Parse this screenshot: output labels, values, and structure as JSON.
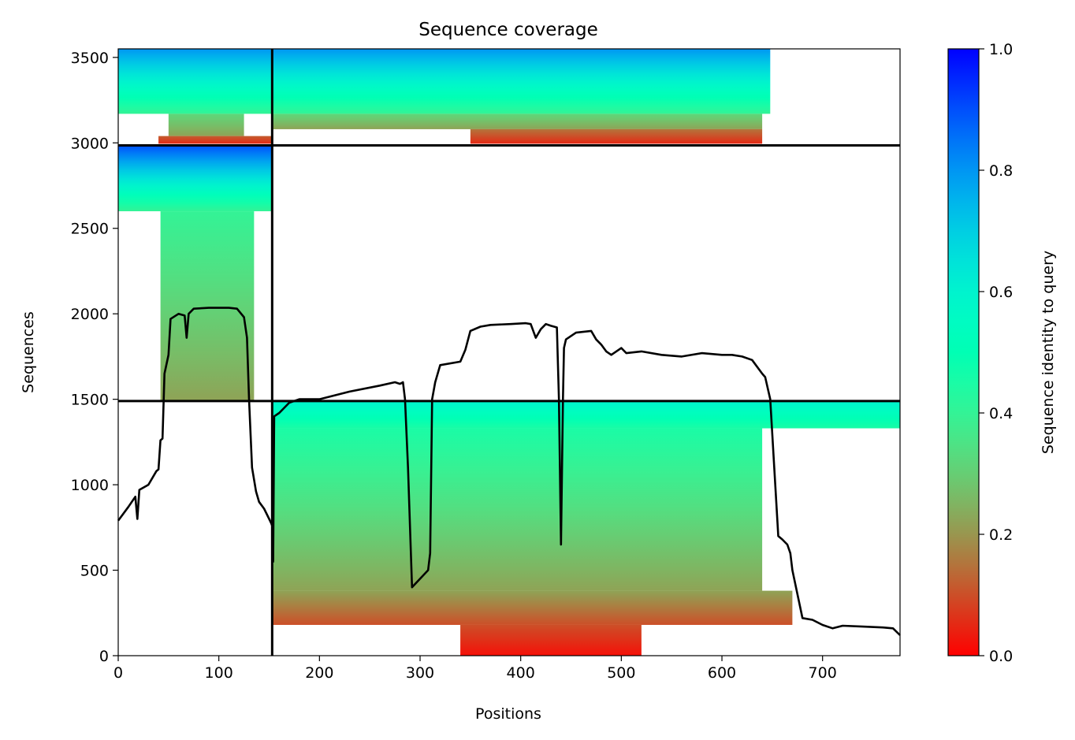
{
  "chart_data": {
    "type": "heatmap",
    "title": "Sequence coverage",
    "xlabel": "Positions",
    "ylabel": "Sequences",
    "xlim": [
      0,
      777
    ],
    "ylim": [
      0,
      3550
    ],
    "x_ticks": [
      0,
      100,
      200,
      300,
      400,
      500,
      600,
      700
    ],
    "y_ticks": [
      0,
      500,
      1000,
      1500,
      2000,
      2500,
      3000,
      3500
    ],
    "colorbar": {
      "label": "Sequence identity to query",
      "range": [
        0,
        1
      ],
      "ticks": [
        "0.0",
        "0.2",
        "0.4",
        "0.6",
        "0.8",
        "1.0"
      ],
      "colormap": "rainbow_r"
    },
    "separators": {
      "x": [
        153
      ],
      "y": [
        1490,
        2985
      ]
    },
    "blocks": [
      {
        "name": "upper-left",
        "x": [
          0,
          153
        ],
        "y": [
          2985,
          3550
        ],
        "regions": [
          {
            "x": [
              0,
              153
            ],
            "y": [
              3170,
              3550
            ],
            "identity_bottom": 0.4,
            "identity_top": 0.8
          },
          {
            "x": [
              50,
              125
            ],
            "y": [
              3040,
              3170
            ],
            "identity_bottom": 0.22,
            "identity_top": 0.32
          },
          {
            "x": [
              40,
              153
            ],
            "y": [
              2995,
              3040
            ],
            "identity_bottom": 0.05,
            "identity_top": 0.12
          }
        ]
      },
      {
        "name": "middle-left",
        "x": [
          0,
          153
        ],
        "y": [
          1490,
          2985
        ],
        "regions": [
          {
            "x": [
              0,
              153
            ],
            "y": [
              2600,
              2985
            ],
            "identity_bottom": 0.4,
            "identity_top": 0.9
          },
          {
            "x": [
              42,
              135
            ],
            "y": [
              1490,
              2600
            ],
            "identity_bottom": 0.22,
            "identity_top": 0.4
          }
        ]
      },
      {
        "name": "upper-right",
        "x": [
          153,
          777
        ],
        "y": [
          2985,
          3550
        ],
        "regions": [
          {
            "x": [
              153,
              648
            ],
            "y": [
              3170,
              3550
            ],
            "identity_bottom": 0.4,
            "identity_top": 0.8
          },
          {
            "x": [
              153,
              640
            ],
            "y": [
              3080,
              3170
            ],
            "identity_bottom": 0.22,
            "identity_top": 0.32
          },
          {
            "x": [
              350,
              640
            ],
            "y": [
              2995,
              3080
            ],
            "identity_bottom": 0.05,
            "identity_top": 0.15
          }
        ]
      },
      {
        "name": "lower-right",
        "x": [
          153,
          777
        ],
        "y": [
          0,
          1490
        ],
        "regions": [
          {
            "x": [
              153,
              777
            ],
            "y": [
              1330,
              1490
            ],
            "identity_bottom": 0.45,
            "identity_top": 0.6
          },
          {
            "x": [
              153,
              640
            ],
            "y": [
              380,
              1330
            ],
            "identity_bottom": 0.22,
            "identity_top": 0.45
          },
          {
            "x": [
              153,
              670
            ],
            "y": [
              180,
              380
            ],
            "identity_bottom": 0.1,
            "identity_top": 0.22
          },
          {
            "x": [
              340,
              520
            ],
            "y": [
              0,
              180
            ],
            "identity_bottom": 0.02,
            "identity_top": 0.1
          }
        ]
      }
    ],
    "coverage_line": {
      "x": [
        0,
        10,
        17,
        19,
        21,
        30,
        38,
        40,
        42,
        44,
        46,
        50,
        52,
        60,
        66,
        68,
        70,
        75,
        90,
        110,
        118,
        125,
        128,
        130,
        133,
        137,
        140,
        145,
        150,
        152,
        153,
        154,
        155,
        160,
        170,
        180,
        200,
        230,
        260,
        275,
        280,
        283,
        285,
        288,
        292,
        300,
        308,
        310,
        312,
        315,
        320,
        340,
        345,
        350,
        360,
        370,
        390,
        405,
        410,
        415,
        420,
        425,
        430,
        436,
        438,
        440,
        442,
        443,
        445,
        455,
        470,
        475,
        480,
        485,
        490,
        500,
        505,
        520,
        540,
        560,
        580,
        600,
        610,
        620,
        630,
        640,
        643,
        648,
        652,
        656,
        660,
        665,
        668,
        670,
        680,
        690,
        700,
        710,
        720,
        740,
        760,
        770,
        777
      ],
      "y": [
        790,
        870,
        930,
        800,
        970,
        1000,
        1080,
        1090,
        1260,
        1270,
        1650,
        1760,
        1970,
        2000,
        1990,
        1860,
        2000,
        2030,
        2035,
        2035,
        2030,
        1980,
        1860,
        1500,
        1100,
        960,
        900,
        860,
        800,
        775,
        760,
        550,
        1400,
        1420,
        1480,
        1500,
        1500,
        1545,
        1580,
        1600,
        1590,
        1600,
        1500,
        1100,
        400,
        450,
        500,
        600,
        1500,
        1600,
        1700,
        1720,
        1790,
        1900,
        1925,
        1935,
        1940,
        1945,
        1940,
        1860,
        1910,
        1940,
        1930,
        1920,
        1500,
        650,
        1500,
        1800,
        1850,
        1890,
        1900,
        1850,
        1820,
        1780,
        1760,
        1800,
        1770,
        1780,
        1760,
        1750,
        1770,
        1760,
        1760,
        1750,
        1730,
        1650,
        1630,
        1500,
        1100,
        700,
        680,
        650,
        600,
        500,
        220,
        210,
        180,
        160,
        175,
        170,
        165,
        160,
        120
      ]
    }
  }
}
